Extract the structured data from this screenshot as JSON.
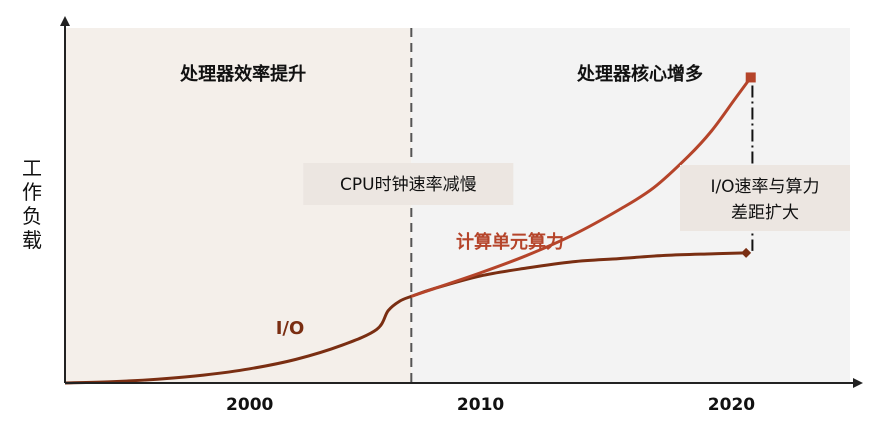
{
  "chart_data": {
    "type": "line",
    "title": "",
    "xlabel": "",
    "ylabel": "工作负载",
    "xlim": [
      1992,
      2026
    ],
    "ylim": [
      0,
      100
    ],
    "x_ticks": [
      2000,
      2010,
      2020
    ],
    "grid": false,
    "divider_x": 2007,
    "regions": [
      {
        "label": "处理器效率提升",
        "from": 1992,
        "to": 2007,
        "color": "#f4efea"
      },
      {
        "label": "处理器核心增多",
        "from": 2007,
        "to": 2026,
        "color": "#f3f3f3"
      }
    ],
    "callouts": [
      {
        "text": "CPU时钟速率减慢"
      },
      {
        "lines": [
          "I/O速率与算力",
          "差距扩大"
        ]
      }
    ],
    "series": [
      {
        "name": "I/O",
        "color": "#7a2e12",
        "x": [
          1992,
          1994,
          1996,
          1998,
          2000,
          2002,
          2004,
          2005.5,
          2006,
          2006.5,
          2007,
          2008,
          2010,
          2012,
          2014,
          2016,
          2018,
          2020,
          2021.5
        ],
        "y": [
          0,
          0.4,
          1.2,
          2.5,
          4.5,
          7.5,
          12,
          17,
          23,
          26,
          27.5,
          30,
          34,
          36.5,
          38.5,
          39.5,
          40.5,
          41,
          41.3
        ]
      },
      {
        "name": "计算单元算力",
        "color": "#b5442a",
        "x": [
          2007,
          2008,
          2010,
          2012,
          2014,
          2016,
          2017.5,
          2019,
          2020,
          2021,
          2021.7
        ],
        "y": [
          27.5,
          30,
          35,
          40.5,
          47,
          55,
          62,
          72,
          80,
          90,
          97
        ]
      }
    ]
  }
}
